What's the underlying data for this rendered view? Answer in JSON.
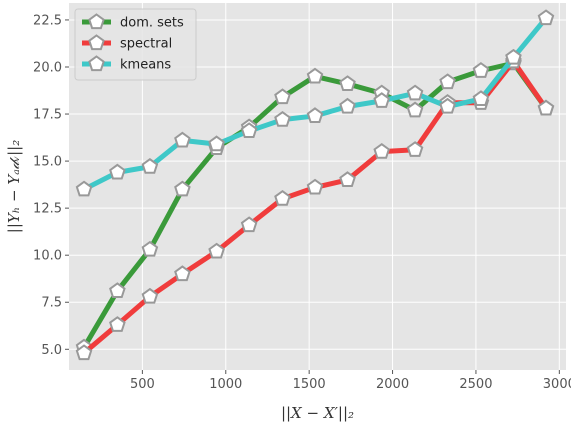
{
  "chart_data": {
    "type": "line",
    "xlabel": "||X − X′||₂",
    "ylabel": "||Yₕ − Yₐ𝒹ᵥ||₂",
    "xlim": [
      60,
      3040
    ],
    "ylim": [
      3.9,
      23.4
    ],
    "xticks": [
      500,
      1000,
      1500,
      2000,
      2500,
      3000
    ],
    "yticks": [
      5.0,
      7.5,
      10.0,
      12.5,
      15.0,
      17.5,
      20.0,
      22.5
    ],
    "xtick_labels": [
      "500",
      "1000",
      "1500",
      "2000",
      "2500",
      "3000"
    ],
    "ytick_labels": [
      "5.0",
      "7.5",
      "10.0",
      "12.5",
      "15.0",
      "17.5",
      "20.0",
      "22.5"
    ],
    "grid": true,
    "legend_position": "top-left",
    "x": [
      150,
      350,
      545,
      740,
      945,
      1140,
      1340,
      1535,
      1730,
      1935,
      2135,
      2330,
      2530,
      2725,
      2920
    ],
    "series": [
      {
        "name": "dom. sets",
        "color": "#3a9a3a",
        "values": [
          5.1,
          8.1,
          10.3,
          13.5,
          15.7,
          16.8,
          18.4,
          19.5,
          19.1,
          18.6,
          17.7,
          19.2,
          19.8,
          20.2,
          17.8
        ]
      },
      {
        "name": "spectral",
        "color": "#f03c3c",
        "values": [
          4.8,
          6.3,
          7.8,
          9.0,
          10.2,
          11.6,
          13.0,
          13.6,
          14.0,
          15.5,
          15.6,
          18.1,
          18.1,
          20.3,
          17.8
        ]
      },
      {
        "name": "kmeans",
        "color": "#3ec8c8",
        "values": [
          13.5,
          14.4,
          14.7,
          16.1,
          15.9,
          16.6,
          17.2,
          17.4,
          17.9,
          18.2,
          18.6,
          17.9,
          18.3,
          20.5,
          22.6
        ]
      }
    ],
    "marker_edge_color": "#999999",
    "marker_fill_color": "#ffffff",
    "plot_background": "#e5e5e5",
    "grid_color": "#ffffff"
  }
}
